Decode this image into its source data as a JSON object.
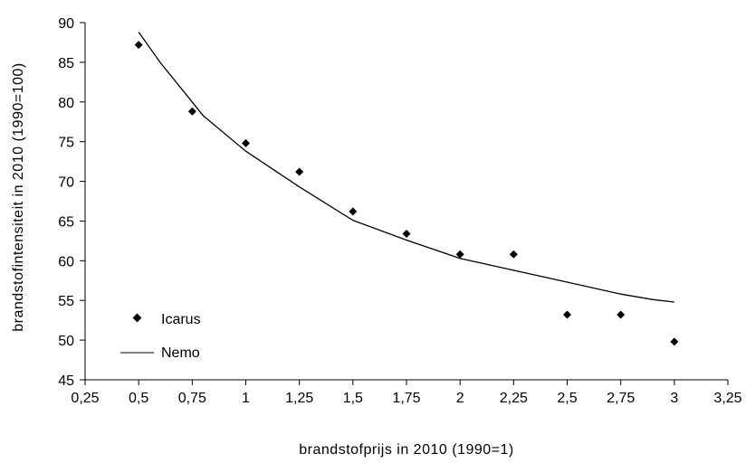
{
  "chart_data": {
    "type": "scatter",
    "xlabel": "brandstofprijs in 2010 (1990=1)",
    "ylabel": "brandstofintensiteit in 2010 (1990=100)",
    "xlim": [
      0.25,
      3.25
    ],
    "ylim": [
      45,
      90
    ],
    "x_ticks": [
      0.25,
      0.5,
      0.75,
      1,
      1.25,
      1.5,
      1.75,
      2,
      2.25,
      2.5,
      2.75,
      3,
      3.25
    ],
    "x_tick_labels": [
      "0,25",
      "0,5",
      "0,75",
      "1",
      "1,25",
      "1,5",
      "1,75",
      "2",
      "2,25",
      "2,5",
      "2,75",
      "3",
      "3,25"
    ],
    "y_ticks": [
      45,
      50,
      55,
      60,
      65,
      70,
      75,
      80,
      85,
      90
    ],
    "y_tick_labels": [
      "45",
      "50",
      "55",
      "60",
      "65",
      "70",
      "75",
      "80",
      "85",
      "90"
    ],
    "grid": false,
    "legend_position": "bottom-left",
    "series": [
      {
        "name": "Icarus",
        "kind": "scatter",
        "marker": "diamond",
        "color": "#000000",
        "x": [
          0.5,
          0.75,
          1,
          1.25,
          1.5,
          1.75,
          2,
          2.25,
          2.5,
          2.75,
          3
        ],
        "y": [
          87.2,
          78.8,
          74.8,
          71.2,
          66.2,
          63.4,
          60.8,
          60.8,
          53.2,
          53.2,
          49.8
        ]
      },
      {
        "name": "Nemo",
        "kind": "line",
        "color": "#000000",
        "x": [
          0.5,
          0.6,
          0.75,
          0.8,
          1,
          1.25,
          1.5,
          1.75,
          2,
          2.25,
          2.5,
          2.75,
          2.9,
          3
        ],
        "y": [
          88.8,
          85.0,
          80.0,
          78.3,
          73.8,
          69.3,
          65.1,
          62.6,
          60.3,
          58.8,
          57.3,
          55.8,
          55.1,
          54.8
        ]
      }
    ]
  }
}
